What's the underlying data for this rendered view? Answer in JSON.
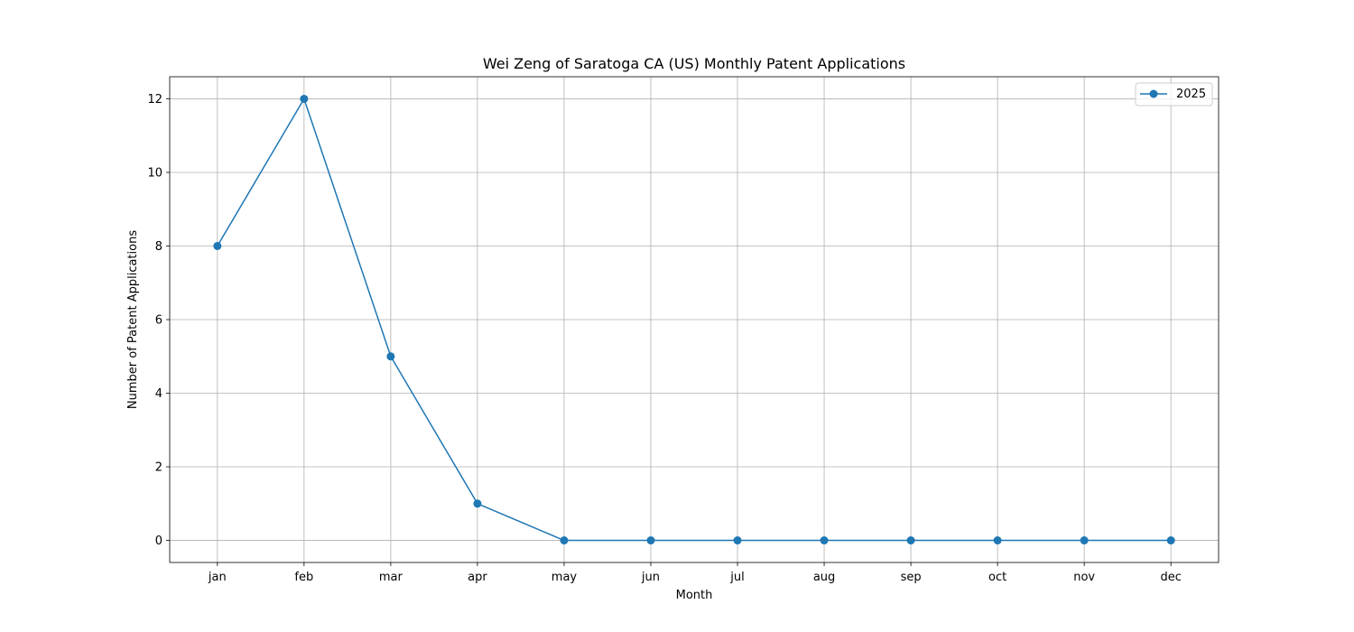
{
  "chart_data": {
    "type": "line",
    "title": "Wei Zeng of Saratoga CA (US) Monthly Patent Applications",
    "xlabel": "Month",
    "ylabel": "Number of Patent Applications",
    "categories": [
      "jan",
      "feb",
      "mar",
      "apr",
      "may",
      "jun",
      "jul",
      "aug",
      "sep",
      "oct",
      "nov",
      "dec"
    ],
    "series": [
      {
        "name": "2025",
        "values": [
          8,
          12,
          5,
          1,
          0,
          0,
          0,
          0,
          0,
          0,
          0,
          0
        ],
        "color": "#1f77b4",
        "marker": "circle"
      }
    ],
    "ylim": [
      -0.6,
      12.6
    ],
    "yticks": [
      0,
      2,
      4,
      6,
      8,
      10,
      12
    ],
    "grid": true,
    "legend_position": "top-right"
  }
}
